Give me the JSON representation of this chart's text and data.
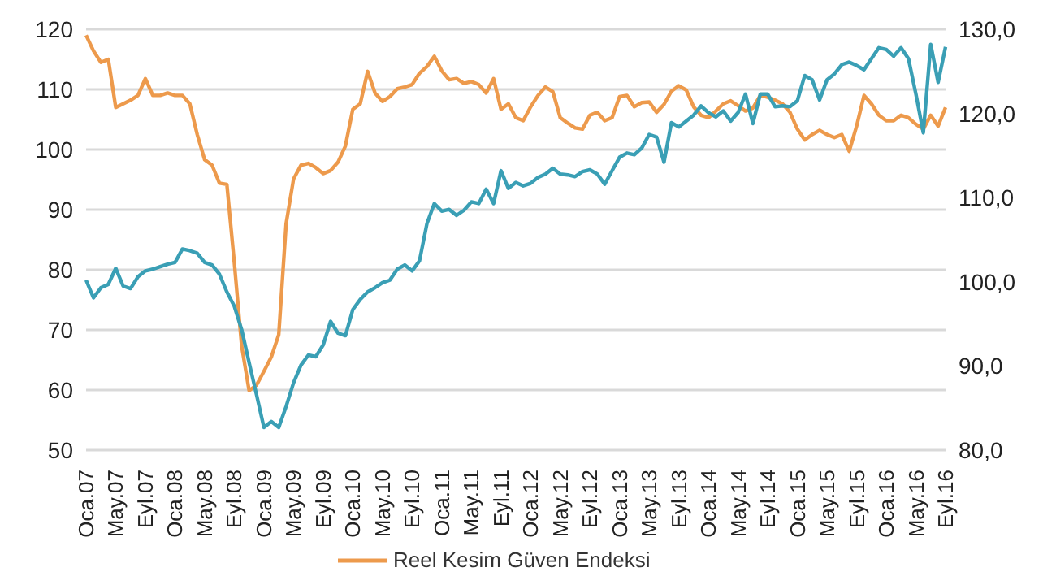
{
  "chart_data": {
    "type": "line",
    "categories": [
      "Oca.07",
      null,
      null,
      null,
      "May.07",
      null,
      null,
      null,
      "Eyl.07",
      null,
      null,
      null,
      "Oca.08",
      null,
      null,
      null,
      "May.08",
      null,
      null,
      null,
      "Eyl.08",
      null,
      null,
      null,
      "Oca.09",
      null,
      null,
      null,
      "May.09",
      null,
      null,
      null,
      "Eyl.09",
      null,
      null,
      null,
      "Oca.10",
      null,
      null,
      null,
      "May.10",
      null,
      null,
      null,
      "Eyl.10",
      null,
      null,
      null,
      "Oca.11",
      null,
      null,
      null,
      "May.11",
      null,
      null,
      null,
      "Eyl.11",
      null,
      null,
      null,
      "Oca.12",
      null,
      null,
      null,
      "May.12",
      null,
      null,
      null,
      "Eyl.12",
      null,
      null,
      null,
      "Oca.13",
      null,
      null,
      null,
      "May.13",
      null,
      null,
      null,
      "Eyl.13",
      null,
      null,
      null,
      "Oca.14",
      null,
      null,
      null,
      "May.14",
      null,
      null,
      null,
      "Eyl.14",
      null,
      null,
      null,
      "Oca.15",
      null,
      null,
      null,
      "May.15",
      null,
      null,
      null,
      "Eyl.15",
      null,
      null,
      null,
      "Oca.16",
      null,
      null,
      null,
      "May.16",
      null,
      null,
      null,
      "Eyl.16"
    ],
    "series": [
      {
        "name": "Reel Kesim Güven Endeksi",
        "color": "#ed9a4c",
        "values": [
          119,
          116.4,
          114.5,
          115,
          107,
          107.6,
          108.2,
          109,
          111.8,
          109,
          109,
          109.4,
          109,
          109,
          107.6,
          102.5,
          98.3,
          97.4,
          94.4,
          94.2,
          81.2,
          67.3,
          59.9,
          60.8,
          63.1,
          65.5,
          69.2,
          87.7,
          95.1,
          97.4,
          97.7,
          97,
          96,
          96.5,
          97.9,
          100.6,
          106.7,
          107.6,
          113,
          109.4,
          108,
          108.8,
          110.1,
          110.4,
          110.8,
          112.7,
          113.8,
          115.5,
          113.1,
          111.6,
          111.8,
          111,
          111.3,
          110.8,
          109.4,
          111.8,
          106.7,
          107.6,
          105.3,
          104.8,
          107.1,
          109,
          110.4,
          109.6,
          105.3,
          104.4,
          103.6,
          103.4,
          105.7,
          106.2,
          104.8,
          105.3,
          108.8,
          109,
          107.1,
          107.8,
          107.9,
          106.2,
          107.5,
          109.7,
          110.6,
          109.9,
          107.1,
          105.7,
          105.3,
          106.4,
          107.6,
          108.1,
          107.3,
          106.4,
          106.9,
          109,
          108.7,
          108.2,
          107.6,
          106.2,
          103.4,
          101.6,
          102.5,
          103.2,
          102.5,
          102,
          102.5,
          99.7,
          103.9,
          109,
          107.6,
          105.7,
          104.8,
          104.8,
          105.7,
          105.3,
          104.2,
          103.4,
          105.7,
          103.9,
          107
        ]
      },
      {
        "color": "#3a9fb5",
        "axis": "y2",
        "values": [
          100.2,
          98.1,
          99.3,
          99.7,
          101.6,
          99.5,
          99.2,
          100.6,
          101.3,
          101.5,
          101.8,
          102.1,
          102.3,
          103.9,
          103.7,
          103.4,
          102.3,
          102,
          100.9,
          98.8,
          97.1,
          94.3,
          90.4,
          86.6,
          82.7,
          83.4,
          82.7,
          85.2,
          88,
          90.1,
          91.3,
          91.1,
          92.5,
          95.3,
          93.9,
          93.6,
          96.7,
          97.9,
          98.8,
          99.3,
          99.9,
          100.2,
          101.5,
          102,
          101.3,
          102.5,
          106.9,
          109.3,
          108.4,
          108.6,
          107.9,
          108.5,
          109.5,
          109.3,
          111,
          109.3,
          113.2,
          111.1,
          111.8,
          111.4,
          111.7,
          112.4,
          112.8,
          113.5,
          112.8,
          112.7,
          112.5,
          113.1,
          113.3,
          112.8,
          111.6,
          113.2,
          114.8,
          115.3,
          115.1,
          115.9,
          117.5,
          117.2,
          114.2,
          118.9,
          118.4,
          119.1,
          119.8,
          120.9,
          120.1,
          119.6,
          120.3,
          119.1,
          120.1,
          122.3,
          118.8,
          122.3,
          122.3,
          120.8,
          120.9,
          120.8,
          121.5,
          124.5,
          124,
          121.6,
          124,
          124.7,
          125.8,
          126.1,
          125.7,
          125.2,
          126.5,
          127.8,
          127.6,
          126.8,
          127.8,
          126.5,
          122.3,
          117.7,
          128.2,
          123.7,
          127.9
        ]
      }
    ],
    "ylim": [
      50,
      120
    ],
    "yticks": [
      50,
      60,
      70,
      80,
      90,
      100,
      110,
      120
    ],
    "y2lim": [
      80,
      130
    ],
    "y2ticks": [
      {
        "value": 80,
        "label": "80,0"
      },
      {
        "value": 90,
        "label": "90,0"
      },
      {
        "value": 100,
        "label": "100,0"
      },
      {
        "value": 110,
        "label": "110,0"
      },
      {
        "value": 120,
        "label": "120,0"
      },
      {
        "value": 130,
        "label": "130,0"
      }
    ],
    "grid": "y",
    "legend": "bottom left",
    "marker": "none",
    "line_style": "solid"
  }
}
